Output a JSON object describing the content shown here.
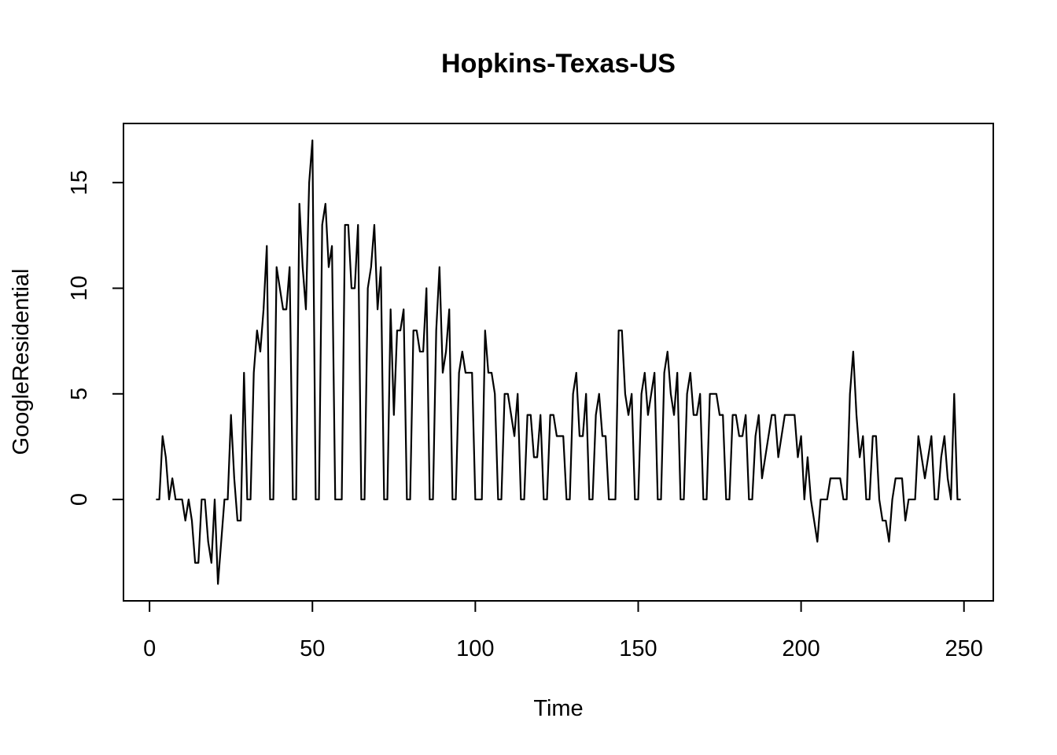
{
  "chart_data": {
    "type": "line",
    "title": "Hopkins-Texas-US",
    "xlabel": "Time",
    "ylabel": "GoogleResidential",
    "xlim": [
      -8,
      259
    ],
    "ylim": [
      -4.8,
      17.8
    ],
    "x_ticks": [
      0,
      50,
      100,
      150,
      200,
      250
    ],
    "y_ticks": [
      0,
      5,
      10,
      15
    ],
    "grid": false,
    "x_start": 2,
    "line_color": "#000000",
    "values": [
      0,
      0,
      3,
      2,
      0,
      1,
      0,
      0,
      0,
      -1,
      0,
      -1,
      -3,
      -3,
      0,
      0,
      -2,
      -3,
      0,
      -4,
      -2,
      0,
      0,
      4,
      1,
      -1,
      -1,
      6,
      0,
      0,
      6,
      8,
      7,
      9,
      12,
      0,
      0,
      11,
      10,
      9,
      9,
      11,
      0,
      0,
      14,
      11,
      9,
      15,
      17,
      0,
      0,
      13,
      14,
      11,
      12,
      0,
      0,
      0,
      13,
      13,
      10,
      10,
      13,
      0,
      0,
      10,
      11,
      13,
      9,
      11,
      0,
      0,
      9,
      4,
      8,
      8,
      9,
      0,
      0,
      8,
      8,
      7,
      7,
      10,
      0,
      0,
      8,
      11,
      6,
      7,
      9,
      0,
      0,
      6,
      7,
      6,
      6,
      6,
      0,
      0,
      0,
      8,
      6,
      6,
      5,
      0,
      0,
      5,
      5,
      4,
      3,
      5,
      0,
      0,
      4,
      4,
      2,
      2,
      4,
      0,
      0,
      4,
      4,
      3,
      3,
      3,
      0,
      0,
      5,
      6,
      3,
      3,
      5,
      0,
      0,
      4,
      5,
      3,
      3,
      0,
      0,
      0,
      8,
      8,
      5,
      4,
      5,
      0,
      0,
      5,
      6,
      4,
      5,
      6,
      0,
      0,
      6,
      7,
      5,
      4,
      6,
      0,
      0,
      5,
      6,
      4,
      4,
      5,
      0,
      0,
      5,
      5,
      5,
      4,
      4,
      0,
      0,
      4,
      4,
      3,
      3,
      4,
      0,
      0,
      3,
      4,
      1,
      2,
      3,
      4,
      4,
      2,
      3,
      4,
      4,
      4,
      4,
      2,
      3,
      0,
      2,
      0,
      -1,
      -2,
      0,
      0,
      0,
      1,
      1,
      1,
      1,
      0,
      0,
      5,
      7,
      4,
      2,
      3,
      0,
      0,
      3,
      3,
      0,
      -1,
      -1,
      -2,
      0,
      1,
      1,
      1,
      -1,
      0,
      0,
      0,
      3,
      2,
      1,
      2,
      3,
      0,
      0,
      2,
      3,
      1,
      0,
      5,
      0,
      0
    ]
  }
}
